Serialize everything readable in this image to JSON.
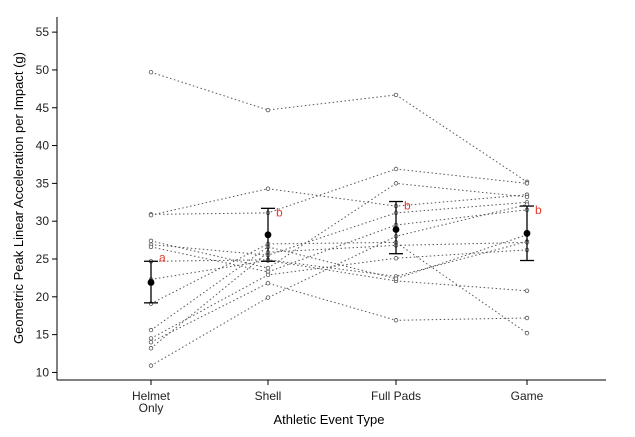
{
  "chart_data": {
    "type": "scatter",
    "title": "",
    "xlabel": "Athletic Event Type",
    "ylabel": "Geometric Peak Linear Acceleration per Impact (g)",
    "categories": [
      [
        "Helmet",
        "Only"
      ],
      [
        "Shell"
      ],
      [
        "Full Pads"
      ],
      [
        "Game"
      ]
    ],
    "ylim": [
      9,
      57
    ],
    "yticks": [
      10,
      15,
      20,
      25,
      30,
      35,
      40,
      45,
      50,
      55
    ],
    "grid": false,
    "legend": "none",
    "subjects": [
      [
        49.7,
        44.7,
        46.7,
        35.2
      ],
      [
        30.9,
        31.1,
        36.9,
        35.0
      ],
      [
        30.8,
        34.3,
        32.0,
        33.5
      ],
      [
        27.4,
        23.8,
        35.0,
        33.2
      ],
      [
        26.9,
        25.5,
        31.1,
        32.5
      ],
      [
        26.6,
        23.3,
        29.5,
        31.5
      ],
      [
        24.7,
        24.9,
        22.7,
        27.3
      ],
      [
        22.3,
        24.8,
        22.1,
        20.8
      ],
      [
        19.1,
        27.0,
        27.2,
        15.2
      ],
      [
        15.6,
        26.6,
        22.4,
        28.2
      ],
      [
        14.5,
        22.9,
        25.1,
        26.2
      ],
      [
        14.0,
        21.8,
        16.9,
        17.2
      ],
      [
        13.2,
        25.9,
        26.8,
        27.2
      ],
      [
        10.9,
        19.9,
        28.0,
        32.2
      ]
    ],
    "means": [
      21.9,
      28.2,
      28.9,
      28.4
    ],
    "error_low": [
      19.2,
      24.7,
      25.7,
      24.8
    ],
    "error_high": [
      24.7,
      31.7,
      32.6,
      32.0
    ],
    "significance_labels": [
      "a",
      "b",
      "b",
      "b"
    ],
    "significance_color": "#e8382a"
  }
}
